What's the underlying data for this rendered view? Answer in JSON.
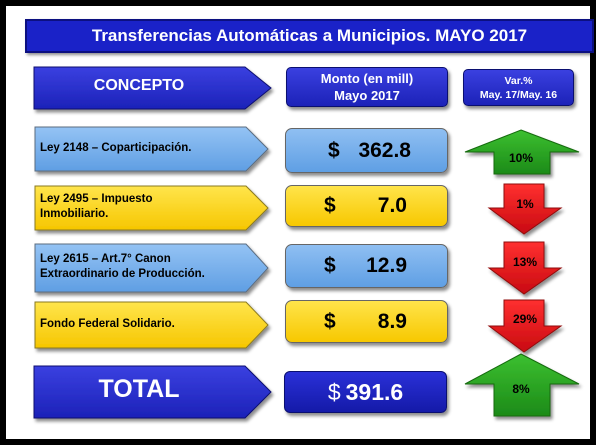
{
  "title": "Transferencias Automáticas a Municipios. MAYO 2017",
  "headers": {
    "concepto": "CONCEPTO",
    "monto_line1": "Monto (en mill)",
    "monto_line2": "Mayo 2017",
    "var_line1": "Var.%",
    "var_line2": "May. 17/May. 16"
  },
  "rows": [
    {
      "concept_line1": "Ley 2148 – Coparticipación.",
      "concept_line2": "",
      "currency": "$",
      "amount": "362.8",
      "variation": "10%"
    },
    {
      "concept_line1": "Ley 2495 – Impuesto",
      "concept_line2": "Inmobiliario.",
      "currency": "$",
      "amount": "7.0",
      "variation": "1%"
    },
    {
      "concept_line1": "Ley 2615 – Art.7° Canon",
      "concept_line2": "Extraordinario de Producción.",
      "currency": "$",
      "amount": "12.9",
      "variation": "13%"
    },
    {
      "concept_line1": "Fondo Federal Solidario.",
      "concept_line2": "",
      "currency": "$",
      "amount": "8.9",
      "variation": "29%"
    }
  ],
  "total": {
    "label": "TOTAL",
    "currency": "$",
    "amount": "391.6",
    "variation": "8%"
  },
  "chart_data": {
    "type": "table",
    "title": "Transferencias Automáticas a Municipios. MAYO 2017",
    "columns": [
      "CONCEPTO",
      "Monto (en mill) Mayo 2017",
      "Var.% May. 17/May. 16"
    ],
    "rows": [
      [
        "Ley 2148 – Coparticipación.",
        362.8,
        10,
        "up"
      ],
      [
        "Ley 2495 – Impuesto Inmobiliario.",
        7.0,
        1,
        "down"
      ],
      [
        "Ley 2615 – Art.7° Canon Extraordinario de Producción.",
        12.9,
        13,
        "down"
      ],
      [
        "Fondo Federal Solidario.",
        8.9,
        29,
        "down"
      ],
      [
        "TOTAL",
        391.6,
        8,
        "up"
      ]
    ]
  },
  "colors": {
    "title_bg": "#1a22c8",
    "blue_box": "#6aa6e8",
    "yellow_box": "#ffd400",
    "arrow_up": "#27a020",
    "arrow_down": "#e8141c"
  },
  "icons": {
    "up": "arrow-up-icon",
    "down": "arrow-down-icon"
  }
}
